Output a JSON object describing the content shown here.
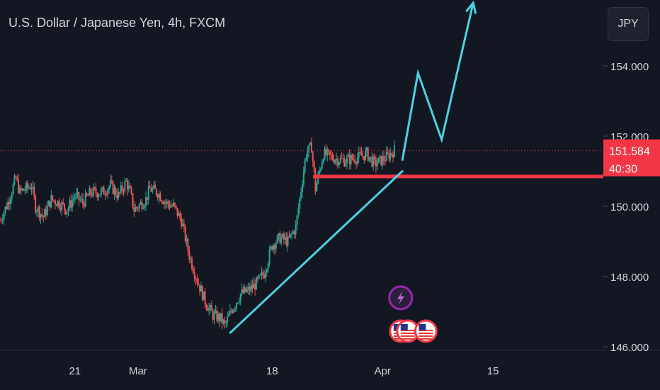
{
  "header": {
    "title": "U.S. Dollar / Japanese Yen, 4h, FXCM",
    "currency_button": "JPY"
  },
  "price_badge": {
    "price": "151.584",
    "countdown": "40:30",
    "value": 151.584,
    "color": "#f23645"
  },
  "colors": {
    "background": "#131722",
    "up_candle": "#26a69a",
    "down_candle": "#ef5350",
    "drawing_lines": "#4dd0e1",
    "support_line": "#f23645",
    "axis_text": "#d1d4dc"
  },
  "icons": {
    "lightning_event": "lightning-icon",
    "us_flag_events": [
      "us-flag-icon",
      "us-flag-icon",
      "us-flag-icon"
    ]
  },
  "chart_data": {
    "type": "candlestick",
    "instrument": "USDJPY",
    "timeframe": "4h",
    "ylim": [
      145.9,
      156.0
    ],
    "y_ticks": [
      154.0,
      152.0,
      150.0,
      148.0,
      146.0
    ],
    "y_tick_labels": [
      "154.000",
      "152.000",
      "150.000",
      "148.000",
      "146.000"
    ],
    "x_ticks": [
      "21",
      "Mar",
      "18",
      "Apr",
      "15"
    ],
    "x_tick_positions_day": [
      7,
      15,
      32,
      46,
      60
    ],
    "visible_day_range": [
      -2.5,
      74
    ],
    "price_path": [
      [
        -2.5,
        149.6
      ],
      [
        -1.5,
        150.1
      ],
      [
        -0.5,
        150.8
      ],
      [
        0,
        150.4
      ],
      [
        1.5,
        150.6
      ],
      [
        2,
        150.0
      ],
      [
        3,
        149.7
      ],
      [
        4,
        150.2
      ],
      [
        5,
        150.1
      ],
      [
        6,
        149.9
      ],
      [
        7,
        150.3
      ],
      [
        8,
        150.1
      ],
      [
        9,
        150.4
      ],
      [
        10.5,
        150.4
      ],
      [
        11.5,
        150.6
      ],
      [
        12.5,
        150.3
      ],
      [
        13.5,
        150.7
      ],
      [
        14,
        150.4
      ],
      [
        14.5,
        149.9
      ],
      [
        15,
        150.0
      ],
      [
        16,
        150.2
      ],
      [
        16.5,
        150.5
      ],
      [
        17.5,
        150.4
      ],
      [
        18.5,
        150.1
      ],
      [
        19.5,
        150.0
      ],
      [
        20.5,
        149.6
      ],
      [
        21.5,
        148.6
      ],
      [
        22.5,
        147.9
      ],
      [
        23.5,
        147.3
      ],
      [
        24.5,
        146.9
      ],
      [
        25.5,
        146.8
      ],
      [
        26,
        146.6
      ],
      [
        27,
        147.1
      ],
      [
        28,
        147.5
      ],
      [
        29,
        147.6
      ],
      [
        30,
        147.8
      ],
      [
        31,
        148.1
      ],
      [
        32,
        148.9
      ],
      [
        33,
        149.1
      ],
      [
        34,
        149.0
      ],
      [
        35,
        149.4
      ],
      [
        35.8,
        150.7
      ],
      [
        36.3,
        151.5
      ],
      [
        37,
        151.7
      ],
      [
        37.5,
        150.5
      ],
      [
        38.5,
        151.5
      ],
      [
        39.5,
        151.4
      ],
      [
        41,
        151.3
      ],
      [
        43,
        151.4
      ],
      [
        44,
        151.5
      ],
      [
        45,
        151.2
      ],
      [
        46.5,
        151.4
      ],
      [
        47.5,
        151.6
      ]
    ],
    "drawings": {
      "trendline": [
        [
          26.7,
          146.4
        ],
        [
          48.5,
          151.0
        ]
      ],
      "support_line": {
        "from_day": 37.2,
        "to_day": 74,
        "price": 150.85
      },
      "projection_path": [
        [
          48.5,
          151.3
        ],
        [
          50.5,
          153.8
        ],
        [
          53.5,
          151.9
        ],
        [
          57.5,
          156.0
        ]
      ]
    },
    "events": [
      {
        "icon": "lightning",
        "day": 48.3,
        "row": 1
      },
      {
        "icon": "us_flag",
        "day": 48.3,
        "row": 2
      },
      {
        "icon": "us_flag",
        "day": 49.2,
        "row": 2
      },
      {
        "icon": "us_flag",
        "day": 51.5,
        "row": 2
      }
    ]
  }
}
